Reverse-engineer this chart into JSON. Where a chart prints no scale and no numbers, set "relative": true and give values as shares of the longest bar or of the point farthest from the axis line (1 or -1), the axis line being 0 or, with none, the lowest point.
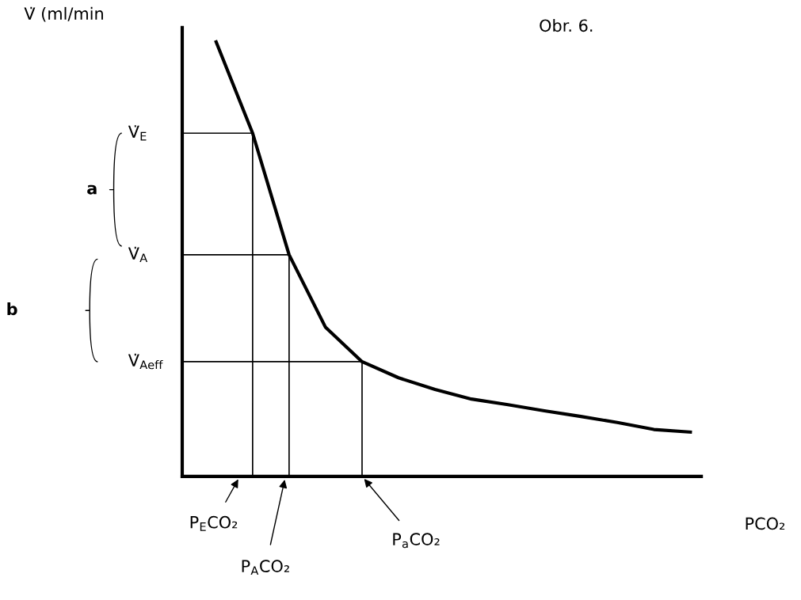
{
  "chart_data": {
    "type": "line",
    "title": "Obr. 6.",
    "xlabel": "PCO₂",
    "ylabel": "V̇ (ml/min",
    "relative": true,
    "tick_labels": false,
    "categories": [
      null,
      null,
      null,
      null,
      null,
      null,
      null,
      null,
      null,
      null,
      null,
      null,
      null,
      null
    ],
    "series": [
      {
        "color": "#000000",
        "values": [
          1,
          0.79,
          0.51,
          0.343,
          0.264,
          0.227,
          0.2,
          0.178,
          0.165,
          0.151,
          0.138,
          0.124,
          0.108,
          0.102
        ]
      }
    ],
    "ref_lines": [
      {
        "axis": "y",
        "value": 0.79,
        "label": "V̇$_{E}$",
        "color": "#000000"
      },
      {
        "axis": "y",
        "value": 0.51,
        "label": "V̇$_{A}$",
        "color": "#000000"
      },
      {
        "axis": "y",
        "value": 0.264,
        "label": "V̇$_{Aeff}$",
        "color": "#000000"
      }
    ],
    "annotations": [
      "a",
      "b",
      "P$_{E}$CO₂",
      "P$_{A}$CO₂",
      "P$_{a}$CO₂"
    ]
  }
}
